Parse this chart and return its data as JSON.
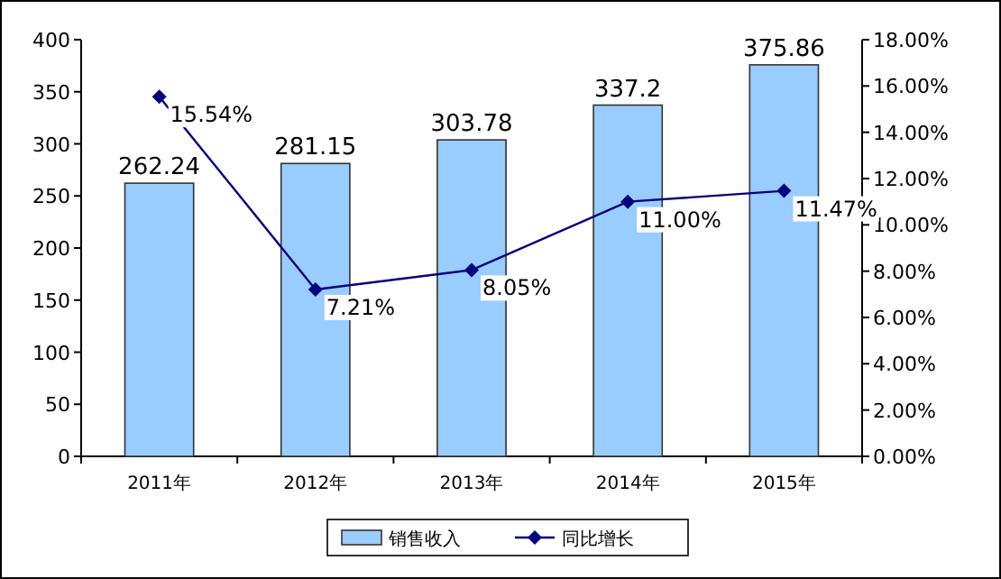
{
  "chart_data": {
    "type": "bar",
    "categories": [
      "2011年",
      "2012年",
      "2013年",
      "2014年",
      "2015年"
    ],
    "series": [
      {
        "name": "销售收入",
        "color": "#99ccff",
        "values": [
          262.24,
          281.15,
          303.78,
          337.2,
          375.86
        ],
        "value_labels": [
          "262.24",
          "281.15",
          "303.78",
          "337.2",
          "375.86"
        ]
      },
      {
        "name": "同比增长",
        "type": "line",
        "axis": "y2",
        "color": "#000080",
        "marker": "diamond",
        "values": [
          15.54,
          7.21,
          8.05,
          11.0,
          11.47
        ],
        "value_labels": [
          "15.54%",
          "7.21%",
          "8.05%",
          "11.00%",
          "11.47%"
        ]
      }
    ],
    "ylim": [
      0,
      400
    ],
    "yticks": [
      0,
      50,
      100,
      150,
      200,
      250,
      300,
      350,
      400
    ],
    "y2lim": [
      0,
      18
    ],
    "y2ticks": [
      {
        "value": 0,
        "label": "0.00%"
      },
      {
        "value": 2,
        "label": "2.00%"
      },
      {
        "value": 4,
        "label": "4.00%"
      },
      {
        "value": 6,
        "label": "6.00%"
      },
      {
        "value": 8,
        "label": "8.00%"
      },
      {
        "value": 10,
        "label": "10.00%"
      },
      {
        "value": 12,
        "label": "12.00%"
      },
      {
        "value": 14,
        "label": "14.00%"
      },
      {
        "value": 16,
        "label": "16.00%"
      },
      {
        "value": 18,
        "label": "18.00%"
      }
    ],
    "legend": "bottom",
    "grid": false
  }
}
